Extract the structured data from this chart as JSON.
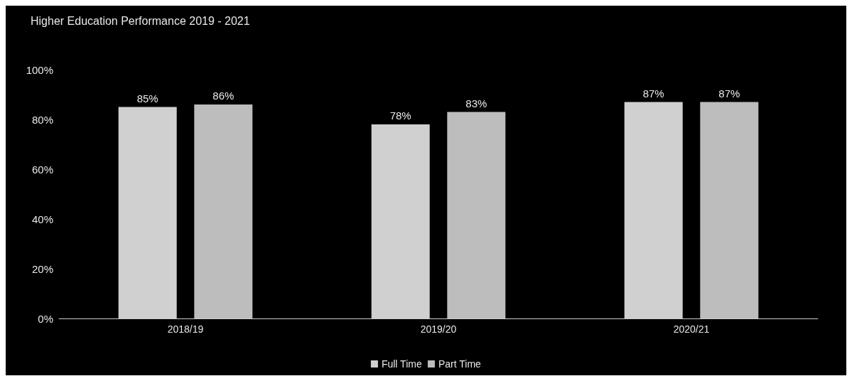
{
  "chart_data": {
    "type": "bar",
    "title": "Higher Education Performance 2019 - 2021",
    "categories": [
      "2018/19",
      "2019/20",
      "2020/21"
    ],
    "series": [
      {
        "name": "Full Time",
        "color": "#d0d0d0",
        "values": [
          85,
          78,
          87
        ],
        "value_labels": [
          "85%",
          "78%",
          "87%"
        ]
      },
      {
        "name": "Part Time",
        "color": "#bdbdbd",
        "values": [
          86,
          83,
          87
        ],
        "value_labels": [
          "86%",
          "83%",
          "87%"
        ]
      }
    ],
    "ylim": [
      0,
      100
    ],
    "yticks": [
      {
        "value": 0,
        "label": "0%"
      },
      {
        "value": 20,
        "label": "20%"
      },
      {
        "value": 40,
        "label": "40%"
      },
      {
        "value": 60,
        "label": "60%"
      },
      {
        "value": 80,
        "label": "80%"
      },
      {
        "value": 100,
        "label": "100%"
      }
    ],
    "grid": false,
    "legend": "bottom"
  }
}
